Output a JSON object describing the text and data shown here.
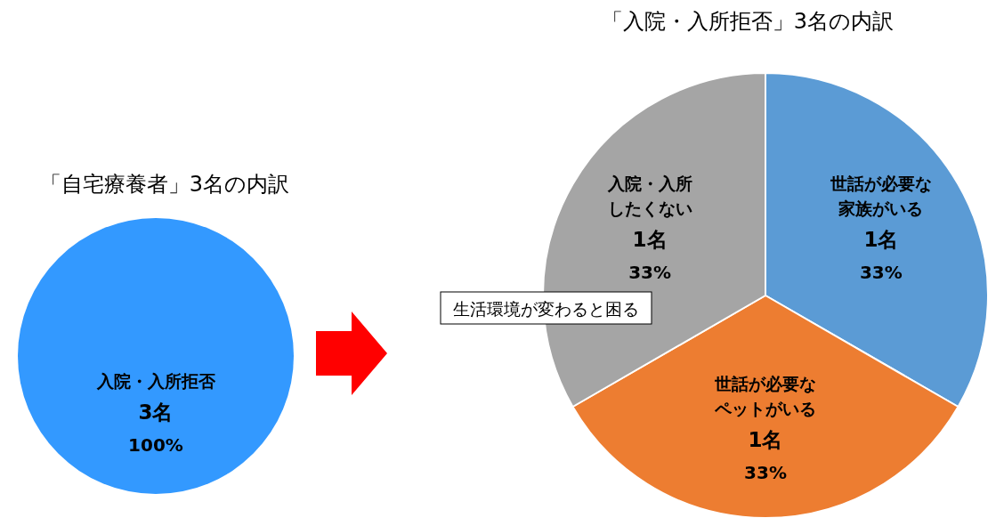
{
  "chart_data": [
    {
      "type": "pie",
      "title": "「自宅療養者」3名の内訳",
      "categories": [
        "入院・入所拒否"
      ],
      "values": [
        3
      ],
      "colors": [
        "#3399ff"
      ],
      "value_labels": [
        "3名\n100%"
      ]
    },
    {
      "type": "pie",
      "title": "「入院・入所拒否」3名の内訳",
      "categories": [
        "世話が必要な家族がいる",
        "世話が必要なペットがいる",
        "入院・入所したくない"
      ],
      "values": [
        1,
        1,
        1
      ],
      "colors": [
        "#5b9bd5",
        "#ed7d31",
        "#a5a5a5"
      ],
      "value_labels": [
        "1名\n33%",
        "1名\n33%",
        "1名\n33%"
      ],
      "annotations": [
        "生活環境が変わると困る"
      ]
    }
  ]
}
